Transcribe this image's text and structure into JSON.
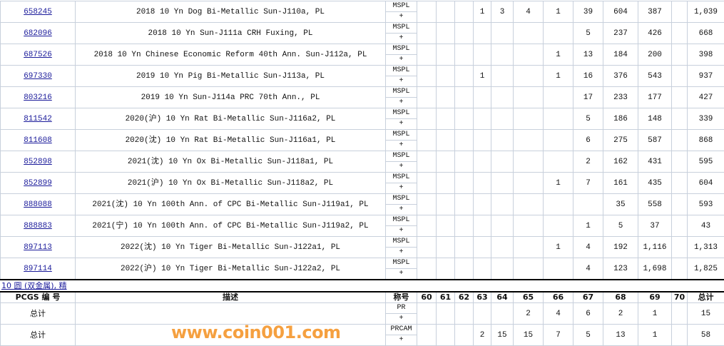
{
  "grade_columns": [
    "60",
    "61",
    "62",
    "63",
    "64",
    "65",
    "66",
    "67",
    "68",
    "69",
    "70"
  ],
  "rows": [
    {
      "id": "658245",
      "desc": "2018 10 Yn Dog Bi-Metallic Sun-J110a, PL",
      "grade": "MSPL",
      "plus": "+",
      "counts": [
        null,
        null,
        null,
        "1",
        "3",
        "4",
        "1",
        "39",
        "604",
        "387",
        null
      ],
      "total": "1,039"
    },
    {
      "id": "682096",
      "desc": "2018 10 Yn Sun-J111a CRH Fuxing, PL",
      "grade": "MSPL",
      "plus": "+",
      "counts": [
        null,
        null,
        null,
        null,
        null,
        null,
        null,
        "5",
        "237",
        "426",
        null
      ],
      "total": "668"
    },
    {
      "id": "687526",
      "desc": "2018 10 Yn Chinese Economic Reform 40th Ann. Sun-J112a, PL",
      "grade": "MSPL",
      "plus": "+",
      "counts": [
        null,
        null,
        null,
        null,
        null,
        null,
        "1",
        "13",
        "184",
        "200",
        null
      ],
      "total": "398"
    },
    {
      "id": "697330",
      "desc": "2019 10 Yn Pig Bi-Metallic Sun-J113a, PL",
      "grade": "MSPL",
      "plus": "+",
      "counts": [
        null,
        null,
        null,
        "1",
        null,
        null,
        "1",
        "16",
        "376",
        "543",
        null
      ],
      "total": "937"
    },
    {
      "id": "803216",
      "desc": "2019 10 Yn Sun-J114a PRC 70th Ann., PL",
      "grade": "MSPL",
      "plus": "+",
      "counts": [
        null,
        null,
        null,
        null,
        null,
        null,
        null,
        "17",
        "233",
        "177",
        null
      ],
      "total": "427"
    },
    {
      "id": "811542",
      "desc": "2020(沪) 10 Yn Rat Bi-Metallic Sun-J116a2, PL",
      "grade": "MSPL",
      "plus": "+",
      "counts": [
        null,
        null,
        null,
        null,
        null,
        null,
        null,
        "5",
        "186",
        "148",
        null
      ],
      "total": "339"
    },
    {
      "id": "811608",
      "desc": "2020(沈) 10 Yn Rat Bi-Metallic Sun-J116a1, PL",
      "grade": "MSPL",
      "plus": "+",
      "counts": [
        null,
        null,
        null,
        null,
        null,
        null,
        null,
        "6",
        "275",
        "587",
        null
      ],
      "total": "868"
    },
    {
      "id": "852898",
      "desc": "2021(沈) 10 Yn Ox Bi-Metallic Sun-J118a1, PL",
      "grade": "MSPL",
      "plus": "+",
      "counts": [
        null,
        null,
        null,
        null,
        null,
        null,
        null,
        "2",
        "162",
        "431",
        null
      ],
      "total": "595"
    },
    {
      "id": "852899",
      "desc": "2021(沪) 10 Yn Ox Bi-Metallic Sun-J118a2, PL",
      "grade": "MSPL",
      "plus": "+",
      "counts": [
        null,
        null,
        null,
        null,
        null,
        null,
        "1",
        "7",
        "161",
        "435",
        null
      ],
      "total": "604"
    },
    {
      "id": "888088",
      "desc": "2021(沈) 10 Yn 100th Ann. of CPC Bi-Metallic Sun-J119a1, PL",
      "grade": "MSPL",
      "plus": "+",
      "counts": [
        null,
        null,
        null,
        null,
        null,
        null,
        null,
        null,
        "35",
        "558",
        null
      ],
      "total": "593"
    },
    {
      "id": "888883",
      "desc": "2021(宁) 10 Yn 100th Ann. of CPC Bi-Metallic Sun-J119a2, PL",
      "grade": "MSPL",
      "plus": "+",
      "counts": [
        null,
        null,
        null,
        null,
        null,
        null,
        null,
        "1",
        "5",
        "37",
        null
      ],
      "total": "43"
    },
    {
      "id": "897113",
      "desc": "2022(沈) 10 Yn Tiger Bi-Metallic Sun-J122a1, PL",
      "grade": "MSPL",
      "plus": "+",
      "counts": [
        null,
        null,
        null,
        null,
        null,
        null,
        "1",
        "4",
        "192",
        "1,116",
        null
      ],
      "total": "1,313"
    },
    {
      "id": "897114",
      "desc": "2022(沪) 10 Yn Tiger Bi-Metallic Sun-J122a2, PL",
      "grade": "MSPL",
      "plus": "+",
      "counts": [
        null,
        null,
        null,
        null,
        null,
        null,
        null,
        "4",
        "123",
        "1,698",
        null
      ],
      "total": "1,825"
    }
  ],
  "section_link": "10 圆 (双金属), 精",
  "summary": {
    "headers": {
      "id": "PCGS 编 号",
      "desc": "描述",
      "grade": "称号",
      "total": "总计"
    },
    "rows": [
      {
        "label": "总计",
        "grade": "PR",
        "plus": "+",
        "counts": [
          null,
          null,
          null,
          null,
          null,
          "2",
          "4",
          "6",
          "2",
          "1",
          null
        ],
        "total": "15"
      },
      {
        "label": "总计",
        "grade": "PRCAM",
        "plus": "+",
        "counts": [
          null,
          null,
          null,
          "2",
          "15",
          "15",
          "7",
          "5",
          "13",
          "1",
          null
        ],
        "total": "58"
      }
    ]
  },
  "watermark": "www.coin001.com"
}
